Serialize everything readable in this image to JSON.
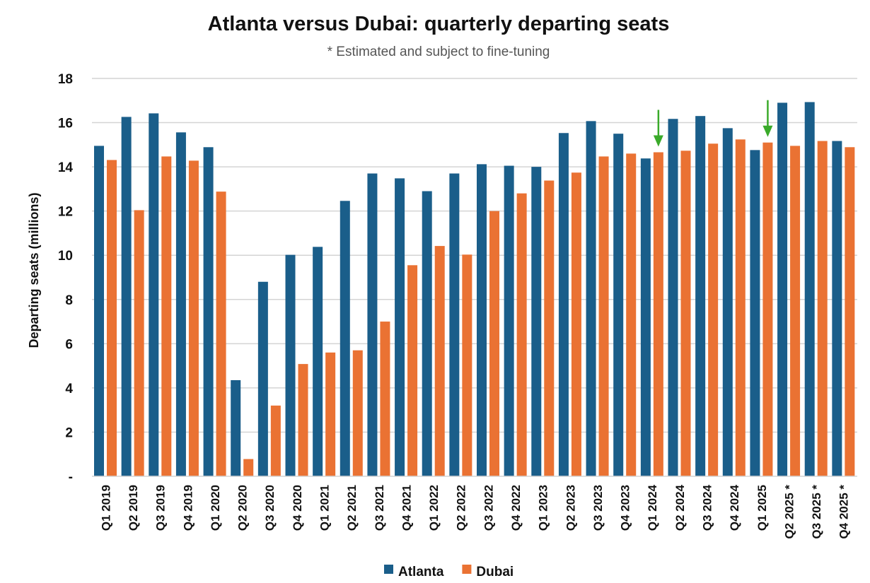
{
  "chart_data": {
    "type": "bar",
    "title": "Atlanta versus Dubai: quarterly departing seats",
    "subtitle": "* Estimated and subject to fine-tuning",
    "xlabel": "",
    "ylabel": "Departing seats (millions)",
    "ylim": [
      0,
      18
    ],
    "yticks": [
      0,
      2,
      4,
      6,
      8,
      10,
      12,
      14,
      16,
      18
    ],
    "ytick_labels": [
      "-",
      "2",
      "4",
      "6",
      "8",
      "10",
      "12",
      "14",
      "16",
      "18"
    ],
    "grid": true,
    "legend_position": "bottom",
    "categories": [
      "Q1 2019",
      "Q2 2019",
      "Q3 2019",
      "Q4 2019",
      "Q1 2020",
      "Q2 2020",
      "Q3 2020",
      "Q4 2020",
      "Q1 2021",
      "Q2 2021",
      "Q3 2021",
      "Q4 2021",
      "Q1 2022",
      "Q2 2022",
      "Q3 2022",
      "Q4 2022",
      "Q1 2023",
      "Q2 2023",
      "Q3 2023",
      "Q4 2023",
      "Q1 2024",
      "Q2 2024",
      "Q3 2024",
      "Q4 2024",
      "Q1 2025",
      "Q2 2025 *",
      "Q3 2025 *",
      "Q4 2025 *"
    ],
    "series": [
      {
        "name": "Atlanta",
        "color": "#1a5e8a",
        "values": [
          14.95,
          16.26,
          16.42,
          15.56,
          14.89,
          4.35,
          8.8,
          10.02,
          10.38,
          12.46,
          13.7,
          13.48,
          12.9,
          13.7,
          14.12,
          14.05,
          14.0,
          15.53,
          16.07,
          15.5,
          14.38,
          16.17,
          16.3,
          15.75,
          14.76,
          16.9,
          16.93,
          15.17
        ]
      },
      {
        "name": "Dubai",
        "color": "#ea7233",
        "values": [
          14.31,
          12.04,
          14.47,
          14.28,
          12.88,
          0.78,
          3.2,
          5.08,
          5.6,
          5.7,
          7.0,
          9.55,
          10.42,
          10.03,
          12.0,
          12.8,
          13.38,
          13.74,
          14.47,
          14.6,
          14.66,
          14.73,
          15.05,
          15.24,
          15.1,
          14.95,
          15.17,
          14.89
        ]
      }
    ],
    "annotations": [
      {
        "type": "arrow",
        "category": "Q1 2024",
        "series": "Dubai",
        "color": "#3aaa2a"
      },
      {
        "type": "arrow",
        "category": "Q1 2025",
        "series": "Dubai",
        "color": "#3aaa2a"
      }
    ]
  }
}
